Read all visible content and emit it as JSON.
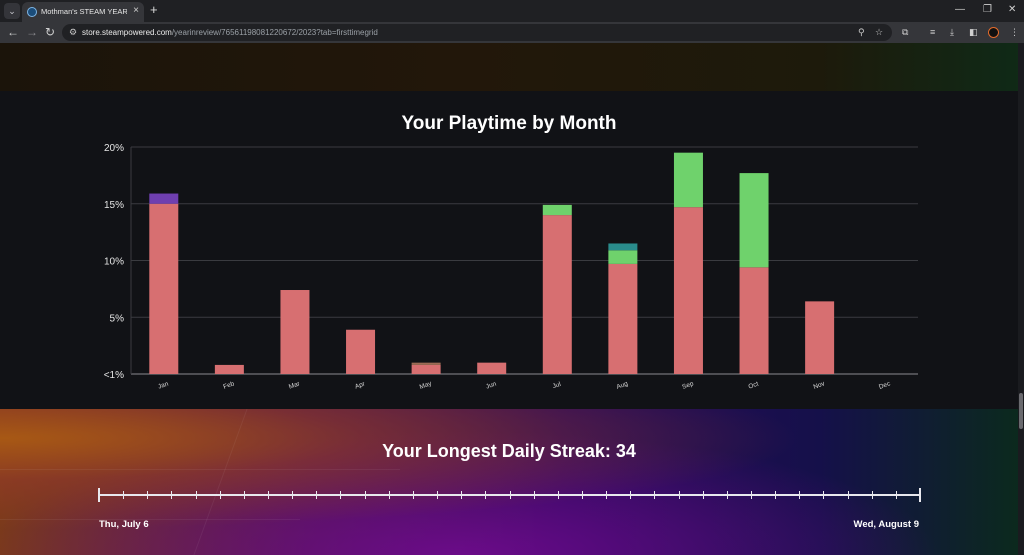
{
  "browser": {
    "tab_title": "Mothman's STEAM YEAR IN RE",
    "url_host": "store.steampowered.com",
    "url_path": "/yearinreview/76561198081220672/2023?tab=firsttimegrid"
  },
  "chart": {
    "title": "Your Playtime by Month"
  },
  "chart_data": {
    "type": "bar",
    "title": "Your Playtime by Month",
    "xlabel": "",
    "ylabel": "",
    "categories": [
      "Jan",
      "Feb",
      "Mar",
      "Apr",
      "May",
      "Jun",
      "Jul",
      "Aug",
      "Sep",
      "Oct",
      "Nov",
      "Dec"
    ],
    "ytick_labels": [
      "<1%",
      "5%",
      "10%",
      "15%",
      "20%"
    ],
    "ylim": [
      0,
      20
    ],
    "grid": true,
    "series": [
      {
        "values": [
          15.0,
          0.8,
          7.4,
          3.9,
          0.8,
          1.0,
          14.0,
          9.7,
          14.7,
          9.4,
          6.4,
          0
        ],
        "color": "#d76f71"
      },
      {
        "values": [
          0,
          0,
          0,
          0,
          0.2,
          0,
          0,
          0,
          0,
          0,
          0,
          0
        ],
        "color": "#9c6b55"
      },
      {
        "values": [
          0,
          0,
          0,
          0,
          0,
          0,
          0.9,
          1.2,
          4.8,
          8.3,
          0,
          0
        ],
        "color": "#6fd26c"
      },
      {
        "values": [
          0,
          0,
          0,
          0,
          0,
          0,
          0,
          0.6,
          0,
          0,
          0,
          0
        ],
        "color": "#2a8c8c"
      },
      {
        "values": [
          0.9,
          0,
          0,
          0,
          0,
          0,
          0,
          0,
          0,
          0,
          0,
          0
        ],
        "color": "#6f3fb0"
      }
    ]
  },
  "streak": {
    "title": "Your Longest Daily Streak: 34",
    "start_date": "Thu, July 6",
    "end_date": "Wed, August 9",
    "days": 34
  }
}
